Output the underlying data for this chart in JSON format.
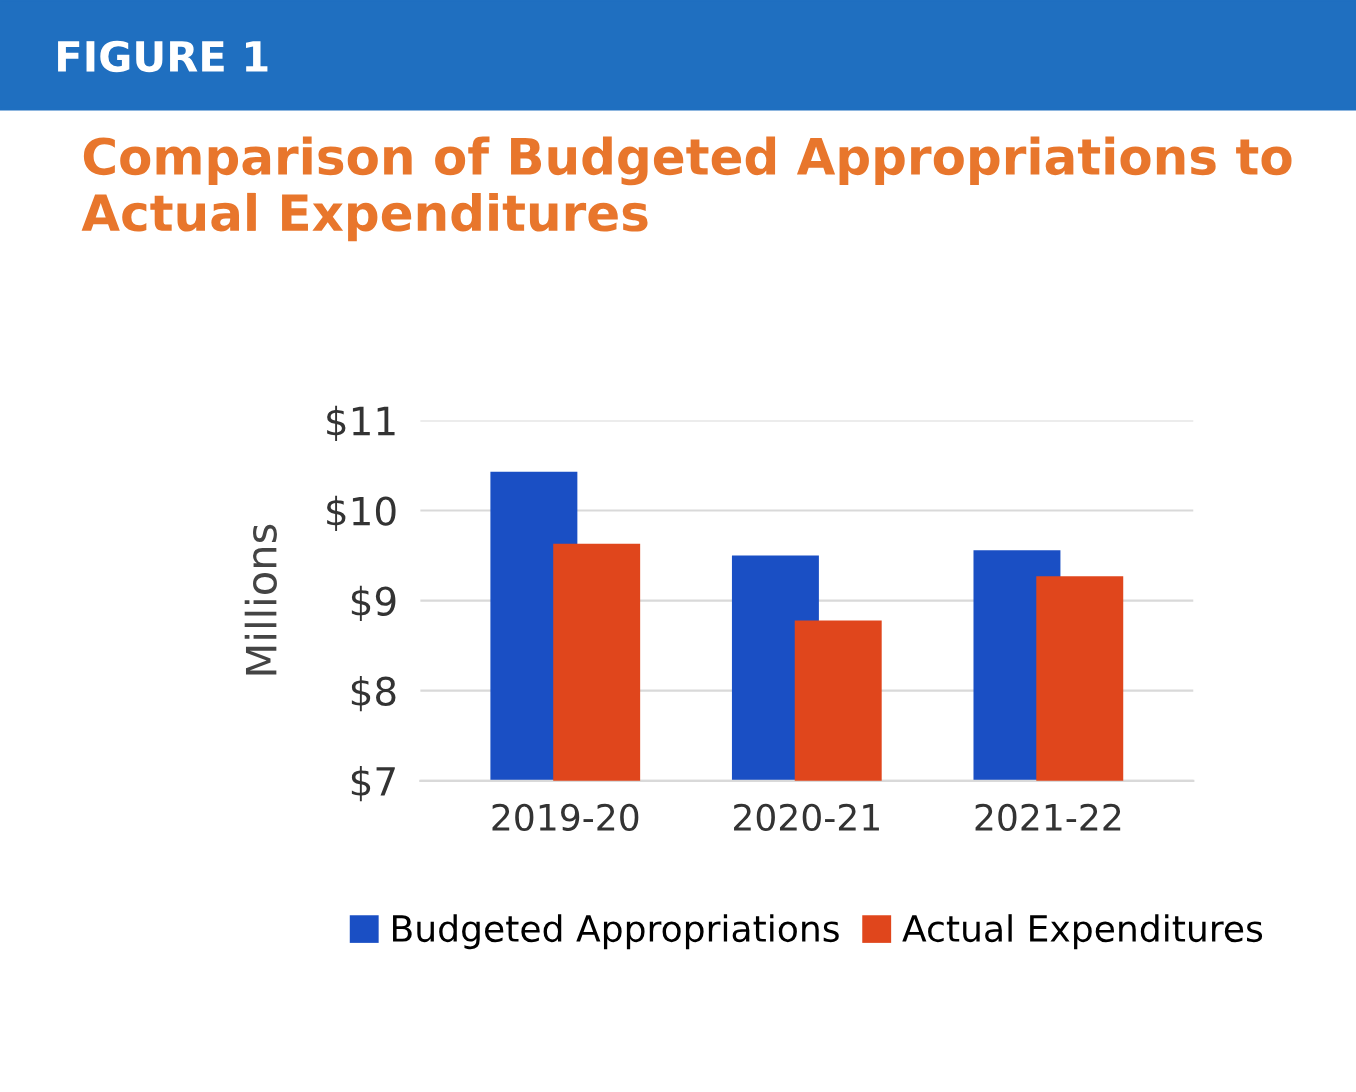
{
  "chart_data": {
    "type": "bar",
    "title": "Comparison of Budgeted Appropriations to Actual Expenditures",
    "annotations": [
      "FIGURE 1"
    ],
    "ylabel": "Millions",
    "categories": [
      "2019-20",
      "2020-21",
      "2021-22"
    ],
    "series": [
      {
        "name": "Budgeted Appropriations",
        "color": "#1a4fc4",
        "values": [
          10.43,
          9.5,
          9.56
        ]
      },
      {
        "name": "Actual Expenditures",
        "color": "#e0461c",
        "values": [
          9.63,
          8.78,
          9.27
        ]
      }
    ],
    "ylim": [
      7,
      11
    ],
    "yticks": [
      {
        "value": 7,
        "label": "$7"
      },
      {
        "value": 8,
        "label": "$8"
      },
      {
        "value": 9,
        "label": "$9"
      },
      {
        "value": 10,
        "label": "$10"
      },
      {
        "value": 11,
        "label": "$11"
      }
    ],
    "grid": "y",
    "legend": "bottom"
  }
}
